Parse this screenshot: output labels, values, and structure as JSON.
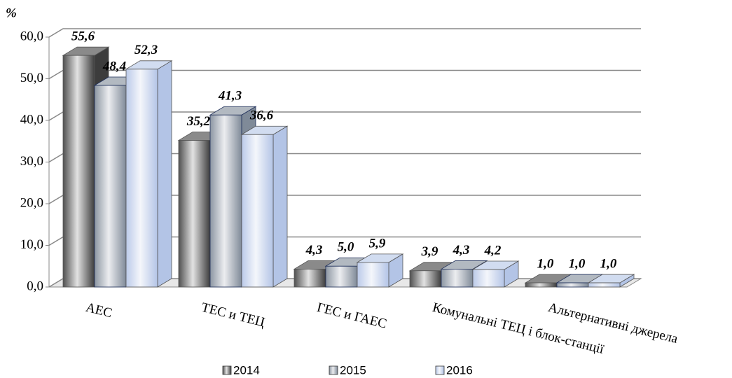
{
  "chart_data": {
    "type": "bar3d",
    "y_label": "%",
    "categories": [
      "АЕС",
      "ТЕС и ТЕЦ",
      "ГЕС и ГАЕС",
      "Комунальні ТЕЦ і блок-станції",
      "Альтернативні  джерела"
    ],
    "series": [
      {
        "name": "2014",
        "color": "#3c3c3c",
        "values": [
          55.6,
          35.2,
          4.3,
          3.9,
          1.0
        ],
        "value_labels": [
          "55,6",
          "35,2",
          "4,3",
          "3,9",
          "1,0"
        ]
      },
      {
        "name": "2015",
        "color": "#7f8a98",
        "values": [
          48.4,
          41.3,
          5.0,
          4.3,
          1.0
        ],
        "value_labels": [
          "48,4",
          "41,3",
          "5,0",
          "4,3",
          "1,0"
        ]
      },
      {
        "name": "2016",
        "color": "#b3c4e6",
        "values": [
          52.3,
          36.6,
          5.9,
          4.2,
          1.0
        ],
        "value_labels": [
          "52,3",
          "36,6",
          "5,9",
          "4,2",
          "1,0"
        ]
      }
    ],
    "ylim": [
      0,
      60
    ],
    "yticks": [
      {
        "value": 0,
        "label": "0,0"
      },
      {
        "value": 10,
        "label": "10,0"
      },
      {
        "value": 20,
        "label": "20,0"
      },
      {
        "value": 30,
        "label": "30,0"
      },
      {
        "value": 40,
        "label": "40,0"
      },
      {
        "value": 50,
        "label": "50,0"
      },
      {
        "value": 60,
        "label": "60,0"
      }
    ],
    "grid": true
  }
}
